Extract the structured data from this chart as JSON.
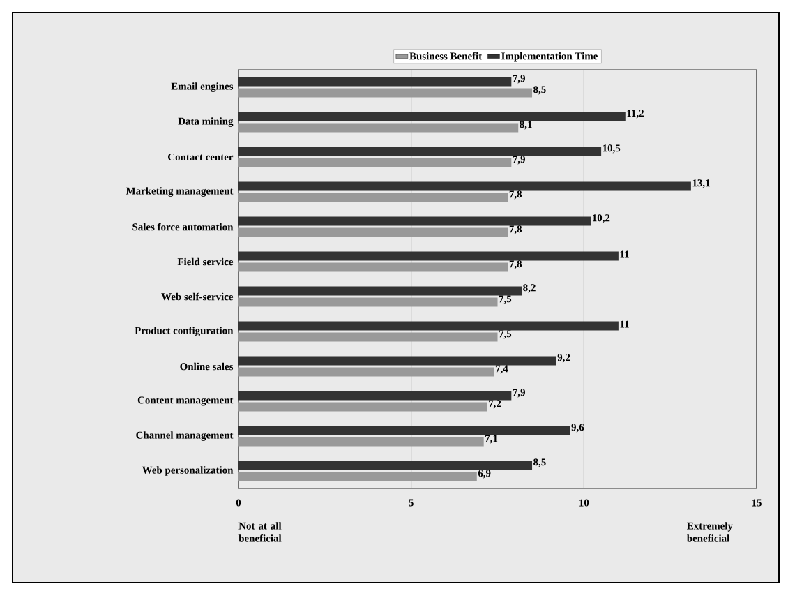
{
  "chart_data": {
    "type": "bar",
    "orientation": "horizontal",
    "categories": [
      "Email engines",
      "Data mining",
      "Contact center",
      "Marketing management",
      "Sales force automation",
      "Field service",
      "Web self-service",
      "Product configuration",
      "Online sales",
      "Content management",
      "Channel management",
      "Web personalization"
    ],
    "series": [
      {
        "name": "Business Benefit",
        "color": "#999999",
        "values": [
          8.5,
          8.1,
          7.9,
          7.8,
          7.8,
          7.8,
          7.5,
          7.5,
          7.4,
          7.2,
          7.1,
          6.9
        ],
        "value_labels": [
          "8,5",
          "8,1",
          "7,9",
          "7,8",
          "7,8",
          "7,8",
          "7,5",
          "7,5",
          "7,4",
          "7,2",
          "7,1",
          "6,9"
        ]
      },
      {
        "name": "Implementation Time",
        "color": "#333333",
        "values": [
          7.9,
          11.2,
          10.5,
          13.1,
          10.2,
          11,
          8.2,
          11,
          9.2,
          7.9,
          9.6,
          8.5
        ],
        "value_labels": [
          "7,9",
          "11,2",
          "10,5",
          "13,1",
          "10,2",
          "11",
          "8,2",
          "11",
          "9,2",
          "7,9",
          "9,6",
          "8,5"
        ]
      }
    ],
    "xlim": [
      0,
      15
    ],
    "xticks": [
      0,
      5,
      10,
      15
    ],
    "grid": "x",
    "legend": "top",
    "annotations": [
      "Not at all beneficial",
      "Extremely beneficial"
    ]
  }
}
